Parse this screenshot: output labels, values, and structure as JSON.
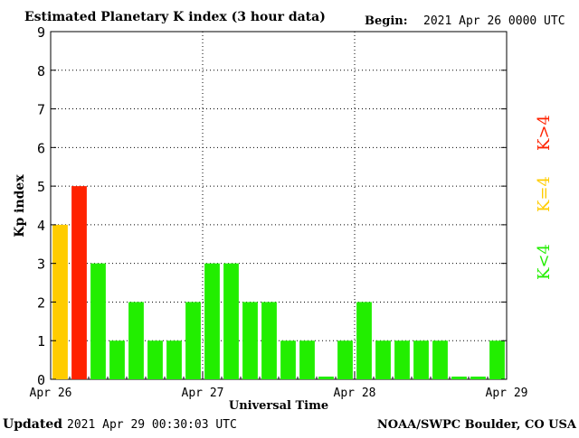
{
  "header": {
    "title": "Estimated Planetary K index (3 hour data)",
    "begin_label": "Begin:",
    "begin_value": "2021 Apr 26 0000 UTC"
  },
  "footer": {
    "updated_label": "Updated",
    "updated_value": "2021 Apr 29 00:30:03 UTC",
    "source": "NOAA/SWPC Boulder, CO USA"
  },
  "legend": {
    "low": "K<4",
    "mid": "K=4",
    "high": "K>4"
  },
  "colors": {
    "low": "#22ee00",
    "mid": "#ffcc00",
    "high": "#ff2200",
    "grid": "#000000"
  },
  "chart_data": {
    "type": "bar",
    "title": "Estimated Planetary K index (3 hour data)",
    "xlabel": "Universal Time",
    "ylabel": "Kp index",
    "ylim": [
      0,
      9
    ],
    "yticks": [
      "0",
      "1",
      "2",
      "3",
      "4",
      "5",
      "6",
      "7",
      "8",
      "9"
    ],
    "day_labels": [
      "Apr 26",
      "Apr 27",
      "Apr 28",
      "Apr 29"
    ],
    "interval_hours": 3,
    "grid": true,
    "legend_position": "right",
    "values": [
      4,
      5,
      3,
      1,
      2,
      1,
      1,
      2,
      3,
      3,
      2,
      2,
      1,
      1,
      0,
      1,
      2,
      1,
      1,
      1,
      1,
      0,
      0,
      1
    ]
  }
}
